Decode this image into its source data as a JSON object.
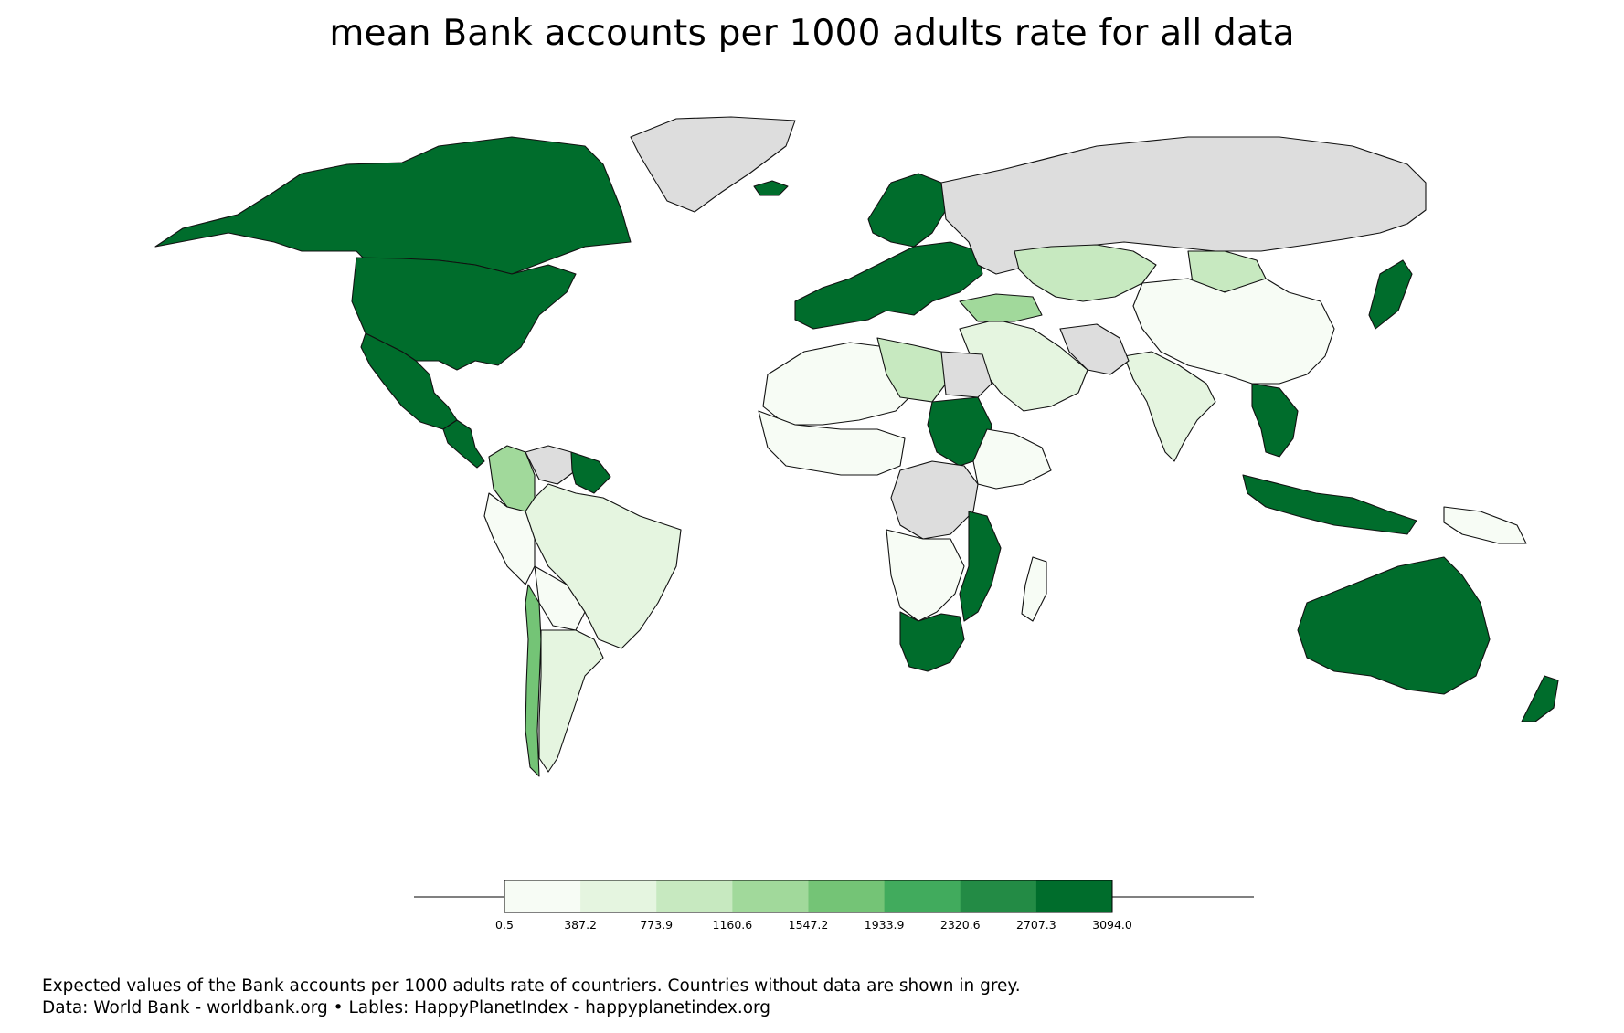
{
  "title": "mean Bank accounts per 1000 adults rate for all data",
  "legend": {
    "bins": [
      {
        "label": "0.5",
        "color": "#f7fcf5"
      },
      {
        "label": "387.2",
        "color": "#e5f5e0"
      },
      {
        "label": "773.9",
        "color": "#c7e9c0"
      },
      {
        "label": "1160.6",
        "color": "#a1d99b"
      },
      {
        "label": "1547.2",
        "color": "#74c476"
      },
      {
        "label": "1933.9",
        "color": "#41ab5d"
      },
      {
        "label": "2320.6",
        "color": "#238b45"
      },
      {
        "label": "2707.3",
        "color": "#006d2c"
      },
      {
        "label": "3094.0",
        "color": null
      }
    ],
    "no_data_color": "#dddddd"
  },
  "colors": {
    "ocean": "#ffffff",
    "border": "#111111",
    "level_0": "#f7fcf5",
    "level_1": "#e5f5e0",
    "level_2": "#c7e9c0",
    "level_3": "#a1d99b",
    "level_4": "#74c476",
    "level_5": "#41ab5d",
    "level_6": "#238b45",
    "level_7": "#006d2c",
    "no_data": "#dddddd"
  },
  "regions": [
    {
      "name": "Canada",
      "level": 7
    },
    {
      "name": "United States",
      "level": 7
    },
    {
      "name": "Mexico",
      "level": 7
    },
    {
      "name": "Central America",
      "level": 7
    },
    {
      "name": "Greenland",
      "level": "no_data"
    },
    {
      "name": "Iceland",
      "level": 7
    },
    {
      "name": "Colombia",
      "level": 3
    },
    {
      "name": "Venezuela",
      "level": "no_data"
    },
    {
      "name": "Guianas",
      "level": 7
    },
    {
      "name": "Brazil",
      "level": 1
    },
    {
      "name": "Peru",
      "level": 0
    },
    {
      "name": "Bolivia",
      "level": 0
    },
    {
      "name": "Chile",
      "level": 4
    },
    {
      "name": "Argentina",
      "level": 1
    },
    {
      "name": "Western Europe",
      "level": 7
    },
    {
      "name": "Scandinavia",
      "level": 7
    },
    {
      "name": "Russia",
      "level": "no_data"
    },
    {
      "name": "Kazakhstan",
      "level": 2
    },
    {
      "name": "Mongolia",
      "level": 2
    },
    {
      "name": "China",
      "level": 0
    },
    {
      "name": "Japan",
      "level": 7
    },
    {
      "name": "India",
      "level": 1
    },
    {
      "name": "Middle East",
      "level": 1
    },
    {
      "name": "Iran",
      "level": "no_data"
    },
    {
      "name": "Turkey",
      "level": 3
    },
    {
      "name": "North Africa",
      "level": 0
    },
    {
      "name": "Libya",
      "level": 2
    },
    {
      "name": "Egypt",
      "level": "no_data"
    },
    {
      "name": "Sudan",
      "level": 7
    },
    {
      "name": "West Africa",
      "level": 0
    },
    {
      "name": "Central Africa",
      "level": "no_data"
    },
    {
      "name": "East Africa",
      "level": 0
    },
    {
      "name": "Southern Africa",
      "level": 0
    },
    {
      "name": "South Africa",
      "level": 7
    },
    {
      "name": "Mozambique",
      "level": 7
    },
    {
      "name": "Madagascar",
      "level": 0
    },
    {
      "name": "Southeast Asia",
      "level": 7
    },
    {
      "name": "Indonesia",
      "level": 7
    },
    {
      "name": "Papua New Guinea",
      "level": 0
    },
    {
      "name": "Australia",
      "level": 7
    },
    {
      "name": "New Zealand",
      "level": 7
    }
  ],
  "footer": {
    "line1": "Expected values of the Bank accounts per 1000 adults rate of countriers. Countries without data are shown in grey.",
    "line2": "Data: World Bank - worldbank.org • Lables: HappyPlanetIndex - happyplanetindex.org"
  }
}
